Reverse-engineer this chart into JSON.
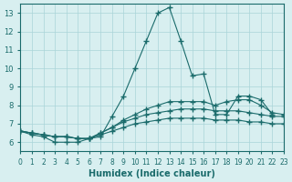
{
  "xlabel": "Humidex (Indice chaleur)",
  "xlim": [
    0,
    23
  ],
  "ylim": [
    5.5,
    13.5
  ],
  "xticks": [
    0,
    1,
    2,
    3,
    4,
    5,
    6,
    7,
    8,
    9,
    10,
    11,
    12,
    13,
    14,
    15,
    16,
    17,
    18,
    19,
    20,
    21,
    22,
    23
  ],
  "yticks": [
    6,
    7,
    8,
    9,
    10,
    11,
    12,
    13
  ],
  "bg_color": "#d8eff0",
  "grid_color": "#aad4d8",
  "line_color": "#1a6b6b",
  "series": [
    [
      6.6,
      6.4,
      6.3,
      6.0,
      6.0,
      6.0,
      6.2,
      6.3,
      7.4,
      8.5,
      10.0,
      11.5,
      13.0,
      13.3,
      11.5,
      9.6,
      9.7,
      7.5,
      7.5,
      8.5,
      8.5,
      8.3,
      7.5,
      null
    ],
    [
      6.6,
      6.5,
      6.4,
      6.3,
      6.3,
      6.2,
      6.2,
      6.5,
      6.8,
      7.2,
      7.5,
      7.8,
      8.0,
      8.2,
      8.2,
      8.2,
      8.2,
      8.0,
      8.2,
      8.3,
      8.3,
      8.0,
      7.6,
      7.5
    ],
    [
      6.6,
      6.5,
      6.4,
      6.3,
      6.3,
      6.2,
      6.2,
      6.5,
      6.8,
      7.1,
      7.3,
      7.5,
      7.6,
      7.7,
      7.8,
      7.8,
      7.8,
      7.7,
      7.7,
      7.7,
      7.6,
      7.5,
      7.4,
      7.4
    ],
    [
      6.6,
      6.5,
      6.4,
      6.3,
      6.3,
      6.2,
      6.2,
      6.4,
      6.6,
      6.8,
      7.0,
      7.1,
      7.2,
      7.3,
      7.3,
      7.3,
      7.3,
      7.2,
      7.2,
      7.2,
      7.1,
      7.1,
      7.0,
      7.0
    ]
  ]
}
